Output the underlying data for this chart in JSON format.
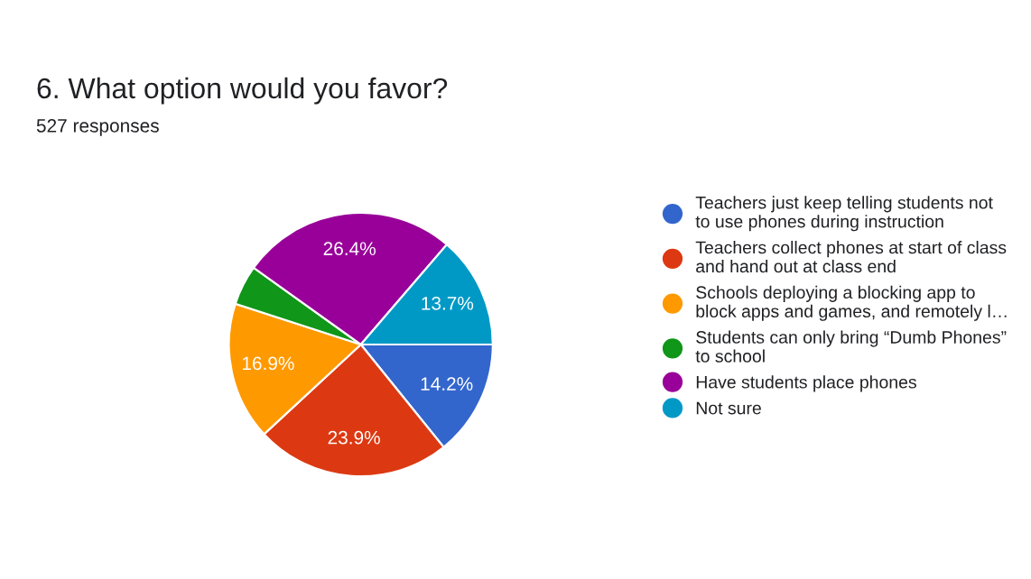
{
  "chart_data": {
    "type": "pie",
    "title": "6. What option would you favor?",
    "subtitle": "527 responses",
    "categories": [
      "Teachers just keep telling students not\nto use phones during instruction",
      "Teachers collect phones at start of class\nand hand out at class end",
      "Schools deploying a blocking app to\nblock apps and games, and remotely l…",
      "Students can only bring “Dumb Phones”\nto school",
      "Have students place phones",
      "Not sure"
    ],
    "values": [
      14.2,
      23.9,
      16.9,
      4.9,
      26.4,
      13.7
    ],
    "colors": [
      "#3366cc",
      "#dc3912",
      "#ff9900",
      "#109618",
      "#990099",
      "#0099c6"
    ],
    "value_labels": [
      "14.2%",
      "23.9%",
      "16.9%",
      null,
      "26.4%",
      "13.7%"
    ],
    "legend": "right"
  }
}
